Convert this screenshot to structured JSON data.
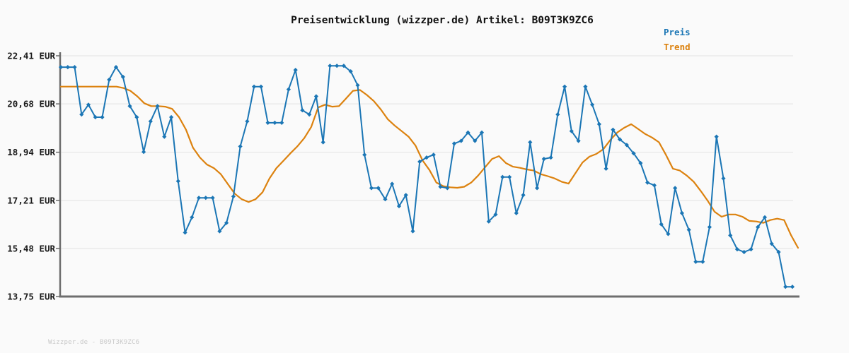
{
  "chart": {
    "title": "Preisentwicklung (wizzper.de) Artikel: B09T3K9ZC6",
    "watermark": "Wizzper.de - B09T3K9ZC6",
    "currency_suffix": "EUR"
  },
  "colors": {
    "price": "#1b76b5",
    "trend": "#dc820f",
    "grid": "#e7e7e7",
    "axis": "#6e6e6e",
    "tick_label": "#1a1a1a",
    "background": "#fafafa",
    "watermark": "#c9c9c9"
  },
  "chart_data": {
    "type": "line",
    "title": "Preisentwicklung (wizzper.de) Artikel: B09T3K9ZC6",
    "xlabel": "",
    "ylabel": "EUR",
    "ylim": [
      13.75,
      22.41
    ],
    "grid": true,
    "x_axis_labels_visible": false,
    "legend_position": "top-right",
    "y_ticks": [
      {
        "label": "22,41 EUR",
        "value": 22.41
      },
      {
        "label": "20,68 EUR",
        "value": 20.68
      },
      {
        "label": "18,94 EUR",
        "value": 18.94
      },
      {
        "label": "17,21 EUR",
        "value": 17.21
      },
      {
        "label": "15,48 EUR",
        "value": 15.48
      },
      {
        "label": "13,75 EUR",
        "value": 13.75
      }
    ],
    "series": [
      {
        "name": "Preis",
        "color": "#1b76b5",
        "marker": "diamond",
        "values": [
          22.0,
          22.0,
          22.0,
          20.3,
          20.65,
          20.2,
          20.2,
          21.55,
          22.0,
          21.65,
          20.6,
          20.2,
          18.95,
          20.05,
          20.6,
          19.5,
          20.2,
          17.9,
          16.05,
          16.6,
          17.3,
          17.3,
          17.3,
          16.1,
          16.4,
          17.35,
          19.15,
          20.05,
          21.3,
          21.3,
          20.0,
          20.0,
          20.0,
          21.2,
          21.9,
          20.45,
          20.3,
          20.95,
          19.3,
          22.05,
          22.05,
          22.05,
          21.85,
          21.35,
          18.85,
          17.65,
          17.65,
          17.25,
          17.8,
          17.0,
          17.4,
          16.1,
          18.6,
          18.75,
          18.85,
          17.7,
          17.65,
          19.25,
          19.35,
          19.65,
          19.35,
          19.65,
          16.45,
          16.7,
          18.05,
          18.05,
          16.75,
          17.4,
          19.3,
          17.65,
          18.7,
          18.75,
          20.3,
          21.3,
          19.7,
          19.35,
          21.3,
          20.65,
          19.95,
          18.35,
          19.75,
          19.4,
          19.2,
          18.9,
          18.55,
          17.85,
          17.75,
          16.35,
          16.0,
          17.65,
          16.75,
          16.15,
          15.0,
          15.0,
          16.25,
          19.5,
          18.0,
          15.95,
          15.45,
          15.35,
          15.45,
          16.25,
          16.6,
          15.65,
          15.35,
          14.1,
          14.1
        ]
      },
      {
        "name": "Trend",
        "color": "#dc820f",
        "marker": "none",
        "values": [
          21.3,
          21.3,
          21.3,
          21.3,
          21.3,
          21.3,
          21.3,
          21.3,
          21.3,
          21.25,
          21.15,
          20.95,
          20.7,
          20.6,
          20.6,
          20.58,
          20.5,
          20.2,
          19.75,
          19.1,
          18.75,
          18.5,
          18.37,
          18.15,
          17.8,
          17.45,
          17.25,
          17.15,
          17.25,
          17.5,
          18.0,
          18.37,
          18.63,
          18.9,
          19.15,
          19.45,
          19.85,
          20.55,
          20.65,
          20.58,
          20.6,
          20.87,
          21.15,
          21.18,
          21.0,
          20.78,
          20.48,
          20.13,
          19.9,
          19.7,
          19.5,
          19.18,
          18.65,
          18.3,
          17.85,
          17.72,
          17.68,
          17.66,
          17.7,
          17.85,
          18.1,
          18.4,
          18.7,
          18.8,
          18.55,
          18.42,
          18.38,
          18.32,
          18.28,
          18.15,
          18.08,
          18.0,
          17.88,
          17.81,
          18.19,
          18.57,
          18.78,
          18.88,
          19.05,
          19.38,
          19.65,
          19.82,
          19.95,
          19.78,
          19.6,
          19.47,
          19.3,
          18.85,
          18.35,
          18.28,
          18.1,
          17.88,
          17.55,
          17.2,
          16.8,
          16.62,
          16.7,
          16.7,
          16.62,
          16.47,
          16.45,
          16.4,
          16.5,
          16.55,
          16.5,
          15.95,
          15.5
        ]
      }
    ]
  }
}
